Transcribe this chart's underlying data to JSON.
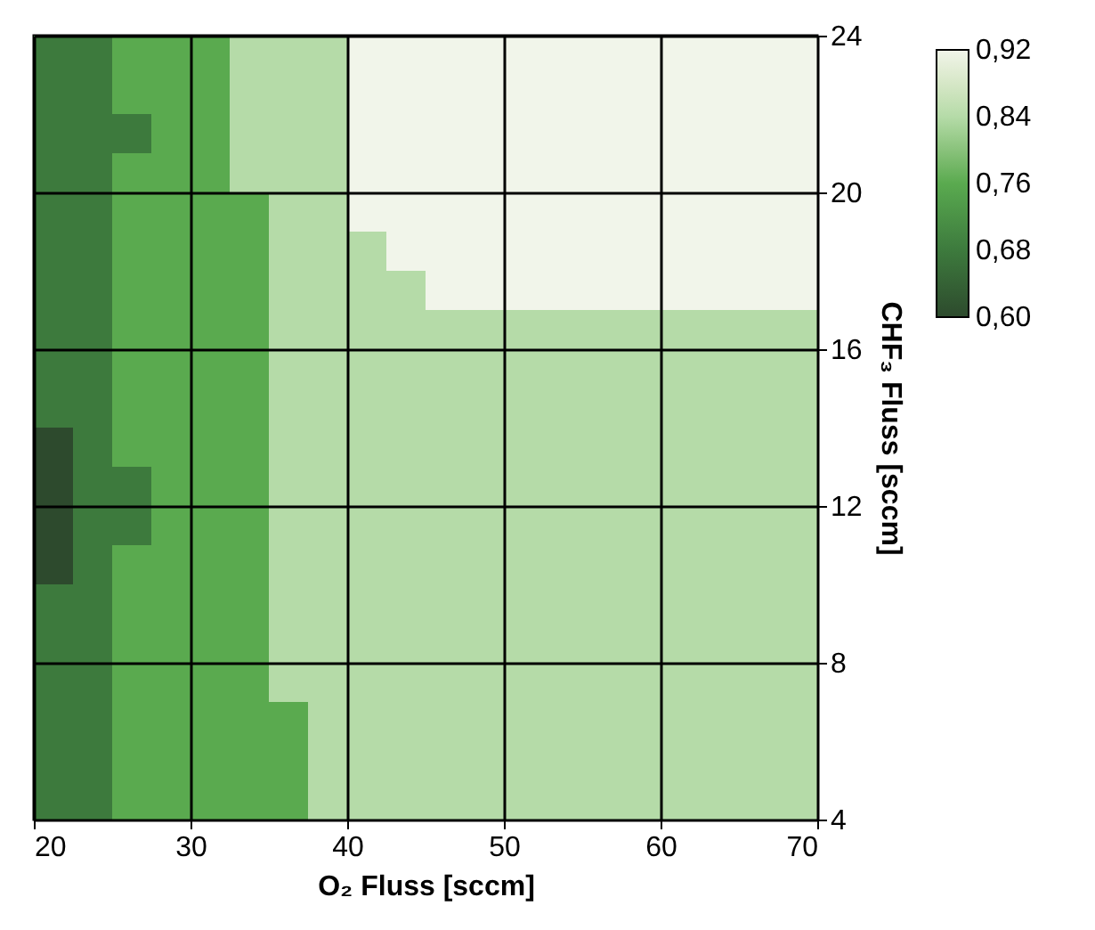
{
  "chart_data": {
    "type": "heatmap",
    "xlabel": "O₂ Fluss [sccm]",
    "ylabel": "CHF₃ Fluss [sccm]",
    "x": [
      21.25,
      23.75,
      26.25,
      28.75,
      31.25,
      33.75,
      36.25,
      38.75,
      41.25,
      43.75,
      46.25,
      48.75,
      51.25,
      53.75,
      56.25,
      58.75,
      61.25,
      63.75,
      66.25,
      68.75
    ],
    "xlim": [
      20,
      70
    ],
    "xticks": [
      20,
      30,
      40,
      50,
      60,
      70
    ],
    "ylim": [
      4,
      24
    ],
    "yticks": [
      4,
      8,
      12,
      16,
      20,
      24
    ],
    "grid": true,
    "clim": [
      0.6,
      0.92
    ],
    "cticks": [
      {
        "value": 0.92,
        "label": "0,92"
      },
      {
        "value": 0.84,
        "label": "0,84"
      },
      {
        "value": 0.76,
        "label": "0,76"
      },
      {
        "value": 0.68,
        "label": "0,68"
      },
      {
        "value": 0.6,
        "label": "0,60"
      }
    ],
    "colors": [
      "#f1f5ea",
      "#b5dba8",
      "#5aaa4f",
      "#3d7a3d",
      "#2d4a2d"
    ],
    "cells": [
      [
        0.68,
        0.68,
        0.76,
        0.76,
        0.76,
        0.84,
        0.84,
        0.84,
        0.92,
        0.92,
        0.92,
        0.92,
        0.92,
        0.92,
        0.92,
        0.92,
        0.92,
        0.92,
        0.92,
        0.92
      ],
      [
        0.68,
        0.68,
        0.76,
        0.76,
        0.76,
        0.84,
        0.84,
        0.84,
        0.92,
        0.92,
        0.92,
        0.92,
        0.92,
        0.92,
        0.92,
        0.92,
        0.92,
        0.92,
        0.92,
        0.92
      ],
      [
        0.68,
        0.68,
        0.68,
        0.76,
        0.76,
        0.84,
        0.84,
        0.84,
        0.92,
        0.92,
        0.92,
        0.92,
        0.92,
        0.92,
        0.92,
        0.92,
        0.92,
        0.92,
        0.92,
        0.92
      ],
      [
        0.68,
        0.68,
        0.76,
        0.76,
        0.76,
        0.84,
        0.84,
        0.84,
        0.92,
        0.92,
        0.92,
        0.92,
        0.92,
        0.92,
        0.92,
        0.92,
        0.92,
        0.92,
        0.92,
        0.92
      ],
      [
        0.68,
        0.68,
        0.76,
        0.76,
        0.76,
        0.76,
        0.84,
        0.84,
        0.92,
        0.92,
        0.92,
        0.92,
        0.92,
        0.92,
        0.92,
        0.92,
        0.92,
        0.92,
        0.92,
        0.92
      ],
      [
        0.68,
        0.68,
        0.76,
        0.76,
        0.76,
        0.76,
        0.84,
        0.84,
        0.84,
        0.92,
        0.92,
        0.92,
        0.92,
        0.92,
        0.92,
        0.92,
        0.92,
        0.92,
        0.92,
        0.92
      ],
      [
        0.68,
        0.68,
        0.76,
        0.76,
        0.76,
        0.76,
        0.84,
        0.84,
        0.84,
        0.84,
        0.92,
        0.92,
        0.92,
        0.92,
        0.92,
        0.92,
        0.92,
        0.92,
        0.92,
        0.92
      ],
      [
        0.68,
        0.68,
        0.76,
        0.76,
        0.76,
        0.76,
        0.84,
        0.84,
        0.84,
        0.84,
        0.84,
        0.84,
        0.84,
        0.84,
        0.84,
        0.84,
        0.84,
        0.84,
        0.84,
        0.84
      ],
      [
        0.68,
        0.68,
        0.76,
        0.76,
        0.76,
        0.76,
        0.84,
        0.84,
        0.84,
        0.84,
        0.84,
        0.84,
        0.84,
        0.84,
        0.84,
        0.84,
        0.84,
        0.84,
        0.84,
        0.84
      ],
      [
        0.68,
        0.68,
        0.76,
        0.76,
        0.76,
        0.76,
        0.84,
        0.84,
        0.84,
        0.84,
        0.84,
        0.84,
        0.84,
        0.84,
        0.84,
        0.84,
        0.84,
        0.84,
        0.84,
        0.84
      ],
      [
        0.6,
        0.68,
        0.76,
        0.76,
        0.76,
        0.76,
        0.84,
        0.84,
        0.84,
        0.84,
        0.84,
        0.84,
        0.84,
        0.84,
        0.84,
        0.84,
        0.84,
        0.84,
        0.84,
        0.84
      ],
      [
        0.6,
        0.68,
        0.68,
        0.76,
        0.76,
        0.76,
        0.84,
        0.84,
        0.84,
        0.84,
        0.84,
        0.84,
        0.84,
        0.84,
        0.84,
        0.84,
        0.84,
        0.84,
        0.84,
        0.84
      ],
      [
        0.6,
        0.68,
        0.68,
        0.76,
        0.76,
        0.76,
        0.84,
        0.84,
        0.84,
        0.84,
        0.84,
        0.84,
        0.84,
        0.84,
        0.84,
        0.84,
        0.84,
        0.84,
        0.84,
        0.84
      ],
      [
        0.6,
        0.68,
        0.76,
        0.76,
        0.76,
        0.76,
        0.84,
        0.84,
        0.84,
        0.84,
        0.84,
        0.84,
        0.84,
        0.84,
        0.84,
        0.84,
        0.84,
        0.84,
        0.84,
        0.84
      ],
      [
        0.68,
        0.68,
        0.76,
        0.76,
        0.76,
        0.76,
        0.84,
        0.84,
        0.84,
        0.84,
        0.84,
        0.84,
        0.84,
        0.84,
        0.84,
        0.84,
        0.84,
        0.84,
        0.84,
        0.84
      ],
      [
        0.68,
        0.68,
        0.76,
        0.76,
        0.76,
        0.76,
        0.84,
        0.84,
        0.84,
        0.84,
        0.84,
        0.84,
        0.84,
        0.84,
        0.84,
        0.84,
        0.84,
        0.84,
        0.84,
        0.84
      ],
      [
        0.68,
        0.68,
        0.76,
        0.76,
        0.76,
        0.76,
        0.84,
        0.84,
        0.84,
        0.84,
        0.84,
        0.84,
        0.84,
        0.84,
        0.84,
        0.84,
        0.84,
        0.84,
        0.84,
        0.84
      ],
      [
        0.68,
        0.68,
        0.76,
        0.76,
        0.76,
        0.76,
        0.76,
        0.84,
        0.84,
        0.84,
        0.84,
        0.84,
        0.84,
        0.84,
        0.84,
        0.84,
        0.84,
        0.84,
        0.84,
        0.84
      ],
      [
        0.68,
        0.68,
        0.76,
        0.76,
        0.76,
        0.76,
        0.76,
        0.84,
        0.84,
        0.84,
        0.84,
        0.84,
        0.84,
        0.84,
        0.84,
        0.84,
        0.84,
        0.84,
        0.84,
        0.84
      ],
      [
        0.68,
        0.68,
        0.76,
        0.76,
        0.76,
        0.76,
        0.76,
        0.84,
        0.84,
        0.84,
        0.84,
        0.84,
        0.84,
        0.84,
        0.84,
        0.84,
        0.84,
        0.84,
        0.84,
        0.84
      ]
    ]
  }
}
